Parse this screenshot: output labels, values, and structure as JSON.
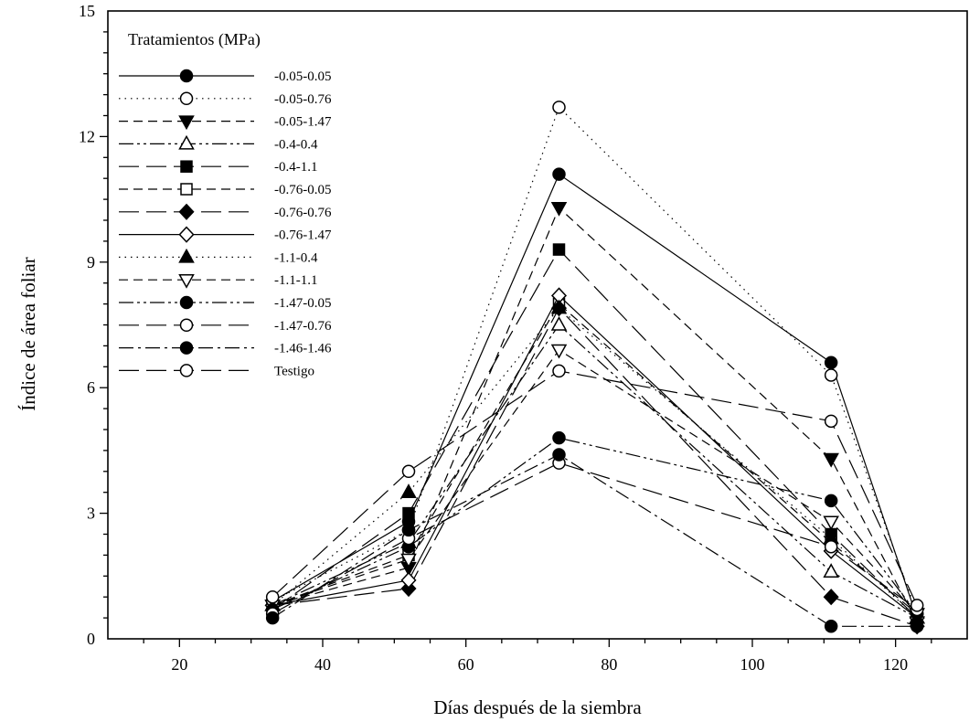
{
  "chart_data": {
    "type": "line",
    "xlabel": "Días después de la siembra",
    "ylabel": "Índice de área foliar",
    "xlim": [
      10,
      130
    ],
    "ylim": [
      0,
      15
    ],
    "xticks": [
      20,
      40,
      60,
      80,
      100,
      120
    ],
    "yticks": [
      0,
      3,
      6,
      9,
      12,
      15
    ],
    "grid": false,
    "legend": {
      "title": "Tratamientos (MPa)",
      "placement": "top-left"
    },
    "x": [
      33,
      52,
      73,
      111,
      123
    ],
    "series": [
      {
        "name": "-0.05-0.05",
        "marker": "circle",
        "fill": "filled",
        "dash": "solid",
        "values": [
          0.9,
          2.8,
          11.1,
          6.6,
          0.5
        ]
      },
      {
        "name": "-0.05-0.76",
        "marker": "circle",
        "fill": "open",
        "dash": "dotted",
        "values": [
          0.9,
          2.6,
          12.7,
          6.3,
          0.6
        ]
      },
      {
        "name": "-0.05-1.47",
        "marker": "triangle-down",
        "fill": "filled",
        "dash": "dashed",
        "values": [
          0.8,
          1.7,
          10.3,
          4.3,
          0.4
        ]
      },
      {
        "name": "-0.4-0.4",
        "marker": "triangle-up",
        "fill": "open",
        "dash": "dashdotdot",
        "values": [
          0.8,
          2.3,
          7.5,
          1.6,
          0.5
        ]
      },
      {
        "name": "-0.4-1.1",
        "marker": "square",
        "fill": "filled",
        "dash": "longdash",
        "values": [
          0.7,
          3.0,
          9.3,
          2.5,
          0.5
        ]
      },
      {
        "name": "-0.76-0.05",
        "marker": "square",
        "fill": "open",
        "dash": "dashed",
        "values": [
          0.8,
          2.0,
          8.0,
          2.3,
          0.6
        ]
      },
      {
        "name": "-0.76-0.76",
        "marker": "diamond",
        "fill": "filled",
        "dash": "longdash",
        "values": [
          0.8,
          1.2,
          7.9,
          1.0,
          0.3
        ]
      },
      {
        "name": "-0.76-1.47",
        "marker": "diamond",
        "fill": "open",
        "dash": "solid",
        "values": [
          0.8,
          1.4,
          8.2,
          2.1,
          0.5
        ]
      },
      {
        "name": "-1.1-0.4",
        "marker": "triangle-up",
        "fill": "filled",
        "dash": "dotted",
        "values": [
          0.8,
          3.5,
          7.9,
          2.4,
          0.5
        ]
      },
      {
        "name": "-1.1-1.1",
        "marker": "triangle-down",
        "fill": "open",
        "dash": "dashed",
        "values": [
          0.8,
          1.9,
          6.9,
          2.8,
          0.6
        ]
      },
      {
        "name": "-1.47-0.05",
        "marker": "circle",
        "fill": "filled",
        "dash": "dashdotdot",
        "values": [
          0.7,
          2.2,
          4.8,
          3.3,
          0.6
        ]
      },
      {
        "name": "-1.47-0.76",
        "marker": "circle",
        "fill": "open",
        "dash": "longdash",
        "values": [
          0.6,
          2.4,
          4.2,
          2.2,
          0.7
        ]
      },
      {
        "name": "-1.46-1.46",
        "marker": "circle",
        "fill": "filled",
        "dash": "dashdot",
        "values": [
          0.5,
          2.6,
          4.4,
          0.3,
          0.3
        ]
      },
      {
        "name": "Testigo",
        "marker": "circle",
        "fill": "open",
        "dash": "longdash",
        "values": [
          1.0,
          4.0,
          6.4,
          5.2,
          0.8
        ]
      }
    ]
  }
}
